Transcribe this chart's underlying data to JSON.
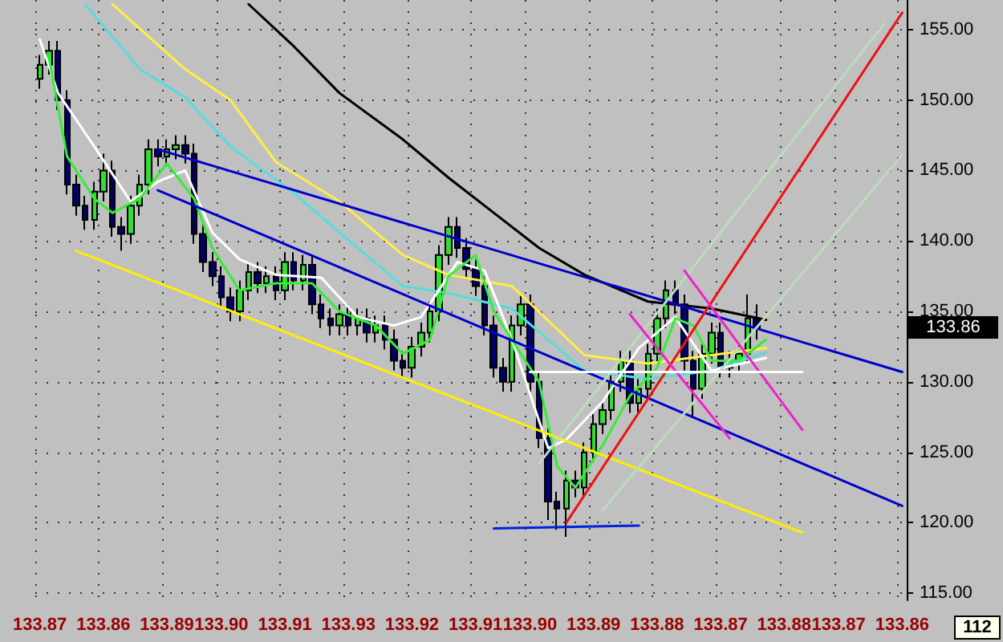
{
  "chart_data": {
    "type": "candlestick",
    "categories": [
      "133.87",
      null,
      null,
      null,
      null,
      null,
      null,
      "133.86",
      null,
      null,
      null,
      null,
      null,
      null,
      "133.89",
      null,
      null,
      null,
      null,
      null,
      "133.90",
      null,
      null,
      null,
      null,
      null,
      null,
      "133.91",
      null,
      null,
      null,
      null,
      null,
      null,
      "133.93",
      null,
      null,
      null,
      null,
      null,
      null,
      "133.92",
      null,
      null,
      null,
      null,
      null,
      null,
      "133.91",
      null,
      null,
      null,
      null,
      null,
      "133.90",
      null,
      null,
      null,
      null,
      null,
      null,
      "133.89",
      null,
      null,
      null,
      null,
      null,
      null,
      "133.88",
      null,
      null,
      null,
      null,
      null,
      null,
      "133.87",
      null,
      null,
      null,
      null,
      null,
      null,
      "133.88",
      null,
      null,
      null,
      null,
      null,
      "133.87",
      null,
      null,
      null,
      null,
      null,
      null,
      "133.86"
    ],
    "colors": [
      "#33dd33",
      "#33dd33",
      "#000066",
      "#000066",
      "#000066",
      "#000066",
      "#33dd33",
      "#33dd33",
      "#000066",
      "#000066",
      "#33dd33",
      "#33dd33",
      "#33dd33",
      "#000066",
      "#33dd33",
      "#33dd33",
      "#000066",
      "#000066",
      "#000066",
      "#000066",
      "#000066",
      "#000066",
      "#33dd33",
      "#33dd33",
      "#000066",
      "#33dd33",
      "#000066",
      "#33dd33",
      "#000066",
      "#33dd33",
      "#000066",
      "#000066",
      "#000066",
      "#33dd33",
      "#000066",
      "#33dd33",
      "#000066",
      "#33dd33",
      "#000066",
      "#000066",
      "#000066",
      "#33dd33",
      "#33dd33",
      "#33dd33",
      "#33dd33",
      "#33dd33",
      "#000066",
      "#000066",
      "#000066",
      "#000066",
      "#000066",
      "#000066",
      "#33dd33",
      "#33dd33",
      "#000066",
      "#000066",
      "#000066",
      "#000066",
      "#33dd33",
      "#000066",
      "#33dd33",
      "#33dd33",
      "#33dd33",
      "#33dd33",
      "#33dd33",
      "#000066",
      "#33dd33",
      "#33dd33",
      "#33dd33",
      "#33dd33",
      "#000066",
      "#000066",
      "#000066",
      "#33dd33",
      "#33dd33",
      "#000066",
      "#33dd33",
      "#33dd33",
      "#33dd33",
      "#000066",
      null,
      null,
      null,
      null,
      null,
      null,
      null,
      null,
      null,
      null,
      null,
      null,
      null,
      null,
      null,
      null
    ],
    "ohlc": [
      [
        151.5,
        153.2,
        150.8,
        152.5
      ],
      [
        152.5,
        154.2,
        151.8,
        153.5
      ],
      [
        153.5,
        154.2,
        149.3,
        150
      ],
      [
        150,
        150.7,
        143.3,
        144
      ],
      [
        144,
        144.7,
        141.8,
        142.5
      ],
      [
        142.5,
        143.2,
        140.8,
        141.5
      ],
      [
        141.5,
        144.2,
        140.8,
        143.5
      ],
      [
        143.5,
        146.2,
        142.8,
        145
      ],
      [
        145,
        145.7,
        140.3,
        141
      ],
      [
        141,
        141.7,
        139.3,
        140.5
      ],
      [
        140.5,
        143.2,
        139.8,
        142.5
      ],
      [
        142.5,
        144.7,
        141.8,
        144
      ],
      [
        144,
        147.2,
        143.3,
        146.5
      ],
      [
        146.5,
        147.2,
        145.3,
        146
      ],
      [
        146,
        147.2,
        145.3,
        146.5
      ],
      [
        146.5,
        147.5,
        145.8,
        146.8
      ],
      [
        146.8,
        147.5,
        145.5,
        146.2
      ],
      [
        146.2,
        146.9,
        139.8,
        140.5
      ],
      [
        140.5,
        141.2,
        137.8,
        138.5
      ],
      [
        138.5,
        139.2,
        136.8,
        137.5
      ],
      [
        137.5,
        138.2,
        135.3,
        136
      ],
      [
        136,
        136.7,
        134.3,
        135
      ],
      [
        135,
        137.2,
        134.3,
        136.5
      ],
      [
        136.5,
        138.5,
        135.8,
        137.8
      ],
      [
        137.8,
        138.5,
        136.3,
        137
      ],
      [
        137,
        138.2,
        136.3,
        137.5
      ],
      [
        137.5,
        138.2,
        135.8,
        136.5
      ],
      [
        136.5,
        139.2,
        135.8,
        138.5
      ],
      [
        138.5,
        139.2,
        136.5,
        137.2
      ],
      [
        137.2,
        139,
        136.5,
        138.3
      ],
      [
        138.3,
        139,
        134.8,
        135.5
      ],
      [
        135.5,
        136.2,
        133.8,
        134.5
      ],
      [
        134.5,
        135.2,
        133.3,
        134
      ],
      [
        134,
        135.5,
        133.3,
        134.8
      ],
      [
        134.8,
        135.5,
        133.3,
        134
      ],
      [
        134,
        135.2,
        133.3,
        134.5
      ],
      [
        134.5,
        135.2,
        132.8,
        133.5
      ],
      [
        133.5,
        134.7,
        132.8,
        134
      ],
      [
        134,
        134.7,
        132.3,
        133
      ],
      [
        133,
        133.7,
        130.8,
        131.5
      ],
      [
        131.5,
        132.2,
        130.3,
        131
      ],
      [
        131,
        133.2,
        130.3,
        132.5
      ],
      [
        132.5,
        134.2,
        131.8,
        133.5
      ],
      [
        133.5,
        135.7,
        132.8,
        135
      ],
      [
        135,
        139.7,
        134.3,
        139
      ],
      [
        139,
        141.7,
        138.3,
        141
      ],
      [
        141,
        141.7,
        138.8,
        139.5
      ],
      [
        139.5,
        140.2,
        137.3,
        138
      ],
      [
        138,
        138.7,
        136.1,
        136.8
      ],
      [
        136.8,
        137.5,
        133.3,
        134
      ],
      [
        134,
        134.7,
        130.3,
        131
      ],
      [
        131,
        131.7,
        129.3,
        130
      ],
      [
        130,
        134.7,
        129.3,
        134
      ],
      [
        134,
        136.2,
        133.3,
        135.5
      ],
      [
        135.5,
        136.2,
        129.3,
        130
      ],
      [
        130,
        130.7,
        125.3,
        126
      ],
      [
        126,
        126.7,
        120.2,
        121.5
      ],
      [
        121.5,
        122.2,
        119.5,
        121
      ],
      [
        121,
        123.7,
        119,
        123
      ],
      [
        123,
        123.7,
        121.8,
        122.5
      ],
      [
        122.5,
        125.7,
        121.8,
        125
      ],
      [
        125,
        127.7,
        124.3,
        127
      ],
      [
        127,
        128.7,
        126.3,
        128
      ],
      [
        128,
        130.7,
        127.3,
        130
      ],
      [
        130,
        132.2,
        129.3,
        131.5
      ],
      [
        131.5,
        132.2,
        127.8,
        128.5
      ],
      [
        128.5,
        130.2,
        127.8,
        129.5
      ],
      [
        129.5,
        132.7,
        128.8,
        132
      ],
      [
        132,
        135.2,
        131.3,
        134.5
      ],
      [
        134.5,
        137.2,
        133.8,
        136.5
      ],
      [
        136.5,
        137.2,
        134.8,
        135.5
      ],
      [
        135.5,
        136.2,
        130.8,
        131.5
      ],
      [
        131.5,
        132.2,
        127.5,
        129.5
      ],
      [
        129.5,
        132.7,
        128.8,
        132
      ],
      [
        132,
        134.2,
        131.3,
        133.5
      ],
      [
        133.5,
        134.2,
        130.3,
        131
      ],
      [
        131,
        132.2,
        130.3,
        131.5
      ],
      [
        131.5,
        132.7,
        130.8,
        132
      ],
      [
        132,
        136.2,
        131.3,
        134.5
      ],
      [
        134.5,
        135.5,
        133,
        133.86
      ],
      null,
      null,
      null,
      null,
      null,
      null,
      null,
      null,
      null,
      null,
      null,
      null,
      null,
      null,
      null,
      null
    ],
    "series": [
      {
        "type": "line",
        "color": "#000000",
        "values": [
          null,
          null,
          null,
          null,
          null,
          null,
          null,
          null,
          null,
          null,
          null,
          null,
          null,
          null,
          null,
          null,
          null,
          null,
          null,
          null,
          null,
          null,
          null,
          156.8,
          null,
          null,
          null,
          null,
          153.8,
          null,
          null,
          null,
          null,
          150.5,
          null,
          null,
          null,
          null,
          null,
          null,
          147.2,
          null,
          null,
          null,
          null,
          144.5,
          null,
          null,
          null,
          null,
          142,
          null,
          null,
          null,
          null,
          139.5,
          null,
          null,
          null,
          null,
          137.6,
          null,
          null,
          null,
          null,
          null,
          null,
          135.7,
          null,
          null,
          null,
          null,
          null,
          null,
          135.2,
          null,
          null,
          null,
          null,
          null,
          134.4,
          null,
          null,
          null,
          null,
          null,
          null,
          null,
          null,
          null,
          null,
          null,
          null,
          null,
          null,
          null
        ]
      },
      {
        "type": "line",
        "color": "#ffee44",
        "values": [
          null,
          null,
          null,
          null,
          null,
          null,
          null,
          null,
          156.8,
          null,
          null,
          null,
          null,
          null,
          null,
          null,
          152.2,
          null,
          null,
          null,
          null,
          150,
          null,
          null,
          null,
          null,
          145.6,
          null,
          null,
          null,
          null,
          null,
          null,
          142.8,
          null,
          null,
          null,
          null,
          null,
          null,
          139,
          null,
          null,
          null,
          null,
          137.6,
          null,
          null,
          null,
          null,
          null,
          null,
          136.8,
          null,
          null,
          null,
          null,
          null,
          null,
          null,
          131.9,
          null,
          null,
          null,
          null,
          null,
          null,
          131.3,
          null,
          null,
          null,
          null,
          null,
          null,
          131.9,
          null,
          null,
          null,
          null,
          null,
          132.4,
          null,
          null,
          null,
          null,
          null,
          null,
          null,
          null,
          null,
          null,
          null,
          null,
          null,
          null,
          null
        ]
      },
      {
        "type": "line",
        "color": "#55dddd",
        "values": [
          null,
          null,
          null,
          null,
          null,
          156.8,
          null,
          null,
          null,
          null,
          null,
          152.2,
          null,
          null,
          null,
          null,
          150.2,
          null,
          null,
          null,
          null,
          146.7,
          null,
          null,
          null,
          null,
          null,
          null,
          143.4,
          null,
          null,
          null,
          null,
          140.6,
          null,
          null,
          null,
          null,
          null,
          null,
          136.8,
          null,
          null,
          null,
          null,
          136.3,
          null,
          null,
          null,
          null,
          null,
          null,
          135.2,
          null,
          null,
          null,
          null,
          null,
          null,
          null,
          130.8,
          null,
          null,
          null,
          null,
          null,
          null,
          130.2,
          null,
          null,
          null,
          null,
          null,
          null,
          130.8,
          null,
          null,
          null,
          null,
          null,
          132.1,
          null,
          null,
          null,
          null,
          null,
          null,
          null,
          null,
          null,
          null,
          null,
          null,
          null,
          null,
          null
        ]
      },
      {
        "type": "line",
        "color": "#ffffff",
        "values": [
          154.3,
          null,
          150.5,
          null,
          null,
          null,
          146.7,
          null,
          null,
          null,
          142.8,
          null,
          null,
          144.2,
          null,
          null,
          145,
          null,
          null,
          140.6,
          null,
          null,
          138.7,
          null,
          null,
          null,
          137.6,
          null,
          null,
          null,
          null,
          137.4,
          null,
          null,
          null,
          134.6,
          null,
          null,
          null,
          134,
          null,
          null,
          134.6,
          null,
          null,
          null,
          138.5,
          null,
          null,
          137.9,
          null,
          null,
          133,
          null,
          null,
          null,
          125.3,
          null,
          125.9,
          null,
          null,
          null,
          128.6,
          null,
          null,
          null,
          132.4,
          null,
          null,
          null,
          134.6,
          null,
          null,
          null,
          130.8,
          null,
          null,
          null,
          null,
          null,
          131.7,
          null,
          null,
          null,
          null,
          null,
          null,
          null,
          null,
          null,
          null,
          null,
          null,
          null,
          null,
          null
        ]
      },
      {
        "type": "line",
        "color": "#33ee33",
        "values": [
          null,
          153,
          null,
          146,
          null,
          null,
          143,
          null,
          142,
          null,
          null,
          143,
          null,
          null,
          145.5,
          null,
          null,
          143,
          null,
          139.5,
          null,
          null,
          136.5,
          null,
          null,
          null,
          137,
          null,
          null,
          null,
          137,
          null,
          null,
          135,
          null,
          null,
          null,
          134,
          null,
          null,
          132,
          null,
          null,
          133,
          null,
          137.5,
          null,
          null,
          139,
          null,
          135,
          null,
          null,
          132,
          null,
          130,
          null,
          124,
          null,
          122.5,
          null,
          null,
          125.5,
          null,
          null,
          129,
          null,
          null,
          131,
          null,
          134.5,
          null,
          134,
          null,
          131.5,
          null,
          null,
          131.5,
          null,
          null,
          133,
          null,
          null,
          null,
          null,
          null,
          null,
          null,
          null,
          null,
          null,
          null,
          null,
          null,
          null,
          null
        ]
      },
      {
        "type": "line",
        "color": "#0000cc",
        "values": [
          null,
          null,
          null,
          null,
          null,
          null,
          null,
          null,
          null,
          null,
          null,
          null,
          null,
          146.5,
          null,
          null,
          null,
          null,
          null,
          null,
          null,
          null,
          null,
          null,
          null,
          null,
          null,
          null,
          null,
          null,
          null,
          null,
          null,
          null,
          null,
          null,
          null,
          null,
          null,
          null,
          null,
          null,
          null,
          null,
          null,
          null,
          null,
          null,
          null,
          null,
          null,
          null,
          null,
          null,
          null,
          null,
          null,
          null,
          null,
          null,
          null,
          null,
          null,
          null,
          null,
          null,
          null,
          null,
          null,
          null,
          null,
          null,
          null,
          null,
          null,
          null,
          null,
          null,
          null,
          null,
          null,
          null,
          null,
          null,
          null,
          null,
          null,
          null,
          null,
          null,
          null,
          null,
          null,
          null,
          null,
          130.7
        ]
      },
      {
        "type": "line",
        "color": "#0000cc",
        "values": [
          null,
          null,
          null,
          null,
          null,
          null,
          null,
          null,
          null,
          null,
          null,
          null,
          null,
          143.6,
          null,
          null,
          null,
          null,
          null,
          null,
          null,
          null,
          null,
          null,
          null,
          null,
          null,
          null,
          null,
          null,
          null,
          null,
          null,
          null,
          null,
          null,
          null,
          null,
          null,
          null,
          null,
          null,
          null,
          null,
          null,
          null,
          null,
          null,
          null,
          null,
          null,
          null,
          null,
          null,
          null,
          null,
          null,
          null,
          null,
          null,
          null,
          null,
          null,
          null,
          null,
          null,
          null,
          null,
          null,
          null,
          null,
          null,
          null,
          null,
          null,
          null,
          null,
          null,
          null,
          null,
          null,
          null,
          null,
          null,
          null,
          null,
          null,
          null,
          null,
          null,
          null,
          null,
          null,
          null,
          null,
          121.2
        ]
      },
      {
        "type": "line",
        "color": "#ffee00",
        "values": [
          null,
          null,
          null,
          null,
          139.3,
          null,
          null,
          null,
          null,
          null,
          null,
          null,
          null,
          null,
          null,
          null,
          null,
          null,
          null,
          null,
          null,
          null,
          null,
          null,
          null,
          null,
          null,
          null,
          null,
          null,
          null,
          null,
          null,
          null,
          null,
          null,
          null,
          null,
          null,
          null,
          null,
          null,
          null,
          null,
          null,
          null,
          null,
          null,
          null,
          null,
          null,
          null,
          null,
          null,
          null,
          null,
          null,
          null,
          null,
          null,
          null,
          null,
          null,
          null,
          null,
          null,
          null,
          null,
          null,
          null,
          null,
          null,
          null,
          null,
          null,
          null,
          null,
          null,
          null,
          null,
          null,
          null,
          null,
          null,
          119.3,
          null,
          null,
          null,
          null,
          null,
          null,
          null,
          null,
          null,
          null,
          null
        ]
      },
      {
        "type": "line",
        "color": "#ee1111",
        "values": [
          null,
          null,
          null,
          null,
          null,
          null,
          null,
          null,
          null,
          null,
          null,
          null,
          null,
          null,
          null,
          null,
          null,
          null,
          null,
          null,
          null,
          null,
          null,
          null,
          null,
          null,
          null,
          null,
          null,
          null,
          null,
          null,
          null,
          null,
          null,
          null,
          null,
          null,
          null,
          null,
          null,
          null,
          null,
          null,
          null,
          null,
          null,
          null,
          null,
          null,
          null,
          null,
          null,
          null,
          null,
          null,
          null,
          null,
          120,
          null,
          null,
          null,
          null,
          null,
          null,
          null,
          null,
          null,
          null,
          null,
          null,
          null,
          null,
          null,
          null,
          null,
          null,
          null,
          null,
          null,
          null,
          null,
          null,
          null,
          null,
          null,
          null,
          null,
          null,
          null,
          null,
          null,
          null,
          null,
          null,
          156.2
        ]
      },
      {
        "type": "line",
        "color": "#bbddbb",
        "values": [
          null,
          null,
          null,
          null,
          null,
          null,
          null,
          null,
          null,
          null,
          null,
          null,
          null,
          null,
          null,
          null,
          null,
          null,
          null,
          null,
          null,
          null,
          null,
          null,
          null,
          null,
          null,
          null,
          null,
          null,
          null,
          null,
          null,
          null,
          null,
          null,
          null,
          null,
          null,
          null,
          null,
          null,
          null,
          null,
          null,
          null,
          null,
          null,
          null,
          null,
          null,
          null,
          null,
          null,
          null,
          124.2,
          null,
          null,
          null,
          null,
          null,
          null,
          null,
          null,
          null,
          null,
          null,
          null,
          null,
          null,
          null,
          null,
          null,
          null,
          null,
          null,
          null,
          null,
          null,
          null,
          null,
          null,
          null,
          null,
          null,
          null,
          null,
          null,
          null,
          null,
          null,
          null,
          null,
          155.4,
          null,
          null
        ]
      },
      {
        "type": "line",
        "color": "#bbddbb",
        "values": [
          null,
          null,
          null,
          null,
          null,
          null,
          null,
          null,
          null,
          null,
          null,
          null,
          null,
          null,
          null,
          null,
          null,
          null,
          null,
          null,
          null,
          null,
          null,
          null,
          null,
          null,
          null,
          null,
          null,
          null,
          null,
          null,
          null,
          null,
          null,
          null,
          null,
          null,
          null,
          null,
          null,
          null,
          null,
          null,
          null,
          null,
          null,
          null,
          null,
          null,
          null,
          null,
          null,
          null,
          null,
          null,
          null,
          null,
          null,
          null,
          null,
          null,
          120.9,
          null,
          null,
          null,
          null,
          null,
          null,
          null,
          null,
          null,
          null,
          null,
          null,
          null,
          null,
          null,
          null,
          null,
          null,
          null,
          null,
          null,
          null,
          null,
          null,
          null,
          null,
          null,
          null,
          null,
          null,
          null,
          null,
          146.1
        ]
      },
      {
        "type": "line",
        "color": "#ee22cc",
        "values": [
          null,
          null,
          null,
          null,
          null,
          null,
          null,
          null,
          null,
          null,
          null,
          null,
          null,
          null,
          null,
          null,
          null,
          null,
          null,
          null,
          null,
          null,
          null,
          null,
          null,
          null,
          null,
          null,
          null,
          null,
          null,
          null,
          null,
          null,
          null,
          null,
          null,
          null,
          null,
          null,
          null,
          null,
          null,
          null,
          null,
          null,
          null,
          null,
          null,
          null,
          null,
          null,
          null,
          null,
          null,
          null,
          null,
          null,
          null,
          null,
          null,
          null,
          null,
          null,
          null,
          null,
          null,
          null,
          null,
          null,
          null,
          137.9,
          null,
          null,
          null,
          null,
          null,
          null,
          null,
          null,
          null,
          null,
          null,
          null,
          126.6,
          null,
          null,
          null,
          null,
          null,
          null,
          null,
          null,
          null,
          null,
          null
        ]
      },
      {
        "type": "line",
        "color": "#ee22cc",
        "values": [
          null,
          null,
          null,
          null,
          null,
          null,
          null,
          null,
          null,
          null,
          null,
          null,
          null,
          null,
          null,
          null,
          null,
          null,
          null,
          null,
          null,
          null,
          null,
          null,
          null,
          null,
          null,
          null,
          null,
          null,
          null,
          null,
          null,
          null,
          null,
          null,
          null,
          null,
          null,
          null,
          null,
          null,
          null,
          null,
          null,
          null,
          null,
          null,
          null,
          null,
          null,
          null,
          null,
          null,
          null,
          null,
          null,
          null,
          null,
          null,
          null,
          null,
          null,
          null,
          null,
          134.8,
          null,
          null,
          null,
          null,
          null,
          null,
          null,
          null,
          null,
          null,
          126,
          null,
          null,
          null,
          null,
          null,
          null,
          null,
          null,
          null,
          null,
          null,
          null,
          null,
          null,
          null,
          null,
          null,
          null,
          null
        ]
      },
      {
        "type": "line",
        "color": "#ffffff",
        "values": [
          null,
          null,
          null,
          null,
          null,
          null,
          null,
          null,
          null,
          null,
          null,
          null,
          null,
          null,
          null,
          null,
          null,
          null,
          null,
          null,
          null,
          null,
          null,
          null,
          null,
          null,
          null,
          null,
          null,
          null,
          null,
          null,
          null,
          null,
          null,
          null,
          null,
          null,
          null,
          null,
          null,
          null,
          null,
          null,
          null,
          null,
          null,
          null,
          null,
          null,
          null,
          null,
          null,
          null,
          130.7,
          null,
          null,
          null,
          null,
          null,
          null,
          null,
          null,
          null,
          null,
          null,
          null,
          null,
          null,
          null,
          null,
          null,
          null,
          null,
          null,
          null,
          null,
          null,
          null,
          null,
          null,
          null,
          null,
          null,
          130.7,
          null,
          null,
          null,
          null,
          null,
          null,
          null,
          null,
          null,
          null,
          null
        ]
      },
      {
        "type": "line",
        "color": "#0022dd",
        "values": [
          null,
          null,
          null,
          null,
          null,
          null,
          null,
          null,
          null,
          null,
          null,
          null,
          null,
          null,
          null,
          null,
          null,
          null,
          null,
          null,
          null,
          null,
          null,
          null,
          null,
          null,
          null,
          null,
          null,
          null,
          null,
          null,
          null,
          null,
          null,
          null,
          null,
          null,
          null,
          null,
          null,
          null,
          null,
          null,
          null,
          null,
          null,
          null,
          null,
          null,
          119.6,
          null,
          null,
          null,
          null,
          null,
          null,
          null,
          null,
          null,
          null,
          null,
          null,
          null,
          null,
          null,
          119.8,
          null,
          null,
          null,
          null,
          null,
          null,
          null,
          null,
          null,
          null,
          null,
          null,
          null,
          null,
          null,
          null,
          null,
          null,
          null,
          null,
          null,
          null,
          null,
          null,
          null,
          null,
          null,
          null,
          null
        ]
      }
    ],
    "ylim": [
      114.5,
      157.1
    ],
    "yticks": [
      {
        "value": 115,
        "label": "115.00"
      },
      {
        "value": 120,
        "label": "120.00"
      },
      {
        "value": 125,
        "label": "125.00"
      },
      {
        "value": 130,
        "label": "130.00"
      },
      {
        "value": 135,
        "label": "135.00"
      },
      {
        "value": 140,
        "label": "140.00"
      },
      {
        "value": 145,
        "label": "145.00"
      },
      {
        "value": 150,
        "label": "150.00"
      },
      {
        "value": 155,
        "label": "155.00"
      }
    ],
    "grid": true,
    "marker": "none",
    "annotations": [
      "133.86",
      "112"
    ]
  }
}
